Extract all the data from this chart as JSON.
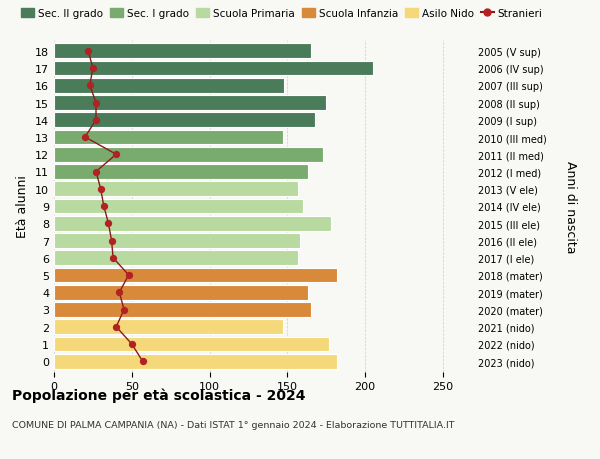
{
  "ages": [
    18,
    17,
    16,
    15,
    14,
    13,
    12,
    11,
    10,
    9,
    8,
    7,
    6,
    5,
    4,
    3,
    2,
    1,
    0
  ],
  "bar_values": [
    165,
    205,
    148,
    175,
    168,
    147,
    173,
    163,
    157,
    160,
    178,
    158,
    157,
    182,
    163,
    165,
    147,
    177,
    182
  ],
  "bar_colors": [
    "#4a7c59",
    "#4a7c59",
    "#4a7c59",
    "#4a7c59",
    "#4a7c59",
    "#7aab6e",
    "#7aab6e",
    "#7aab6e",
    "#b8d9a0",
    "#b8d9a0",
    "#b8d9a0",
    "#b8d9a0",
    "#b8d9a0",
    "#d9893a",
    "#d9893a",
    "#d9893a",
    "#f5d87a",
    "#f5d87a",
    "#f5d87a"
  ],
  "stranieri_values": [
    22,
    25,
    23,
    27,
    27,
    20,
    40,
    27,
    30,
    32,
    35,
    37,
    38,
    48,
    42,
    45,
    40,
    50,
    57
  ],
  "right_labels": [
    "2005 (V sup)",
    "2006 (IV sup)",
    "2007 (III sup)",
    "2008 (II sup)",
    "2009 (I sup)",
    "2010 (III med)",
    "2011 (II med)",
    "2012 (I med)",
    "2013 (V ele)",
    "2014 (IV ele)",
    "2015 (III ele)",
    "2016 (II ele)",
    "2017 (I ele)",
    "2018 (mater)",
    "2019 (mater)",
    "2020 (mater)",
    "2021 (nido)",
    "2022 (nido)",
    "2023 (nido)"
  ],
  "legend_labels": [
    "Sec. II grado",
    "Sec. I grado",
    "Scuola Primaria",
    "Scuola Infanzia",
    "Asilo Nido",
    "Stranieri"
  ],
  "legend_colors": [
    "#4a7c59",
    "#7aab6e",
    "#b8d9a0",
    "#d9893a",
    "#f5d87a",
    "#b22222"
  ],
  "ylabel_left": "Età alunni",
  "ylabel_right": "Anni di nascita",
  "title": "Popolazione per età scolastica - 2024",
  "subtitle": "COMUNE DI PALMA CAMPANIA (NA) - Dati ISTAT 1° gennaio 2024 - Elaborazione TUTTITALIA.IT",
  "xlim": [
    0,
    270
  ],
  "xticks": [
    0,
    50,
    100,
    150,
    200,
    250
  ],
  "background_color": "#f8f8f5",
  "bar_edge_color": "white",
  "grid_color": "#cccccc",
  "stranieri_line_color": "#8b1a1a",
  "stranieri_dot_color": "#b22222"
}
